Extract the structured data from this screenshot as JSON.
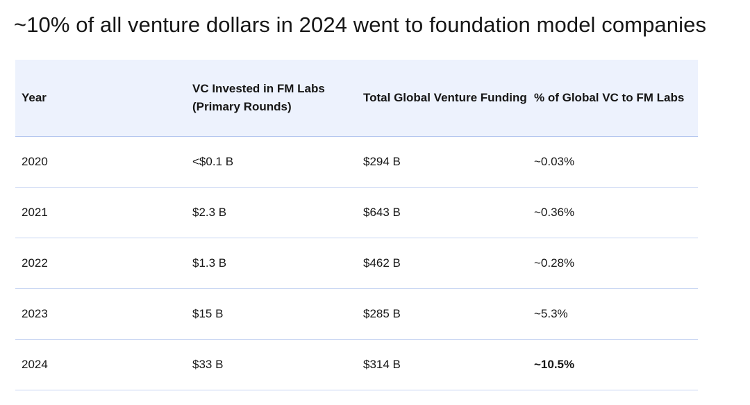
{
  "title": "~10% of all venture dollars in 2024 went to foundation model companies",
  "table": {
    "headers": [
      "Year",
      "VC Invested in FM Labs (Primary Rounds)",
      "Total Global Venture Funding",
      "% of Global VC to FM Labs"
    ],
    "rows": [
      [
        "2020",
        "<$0.1 B",
        "$294 B",
        "~0.03%"
      ],
      [
        "2021",
        "$2.3 B",
        "$643 B",
        "~0.36%"
      ],
      [
        "2022",
        "$1.3 B",
        "$462 B",
        "~0.28%"
      ],
      [
        "2023",
        "$15 B",
        "$285 B",
        "~5.3%"
      ],
      [
        "2024",
        "$33 B",
        "$314 B",
        "~10.5%"
      ]
    ]
  }
}
